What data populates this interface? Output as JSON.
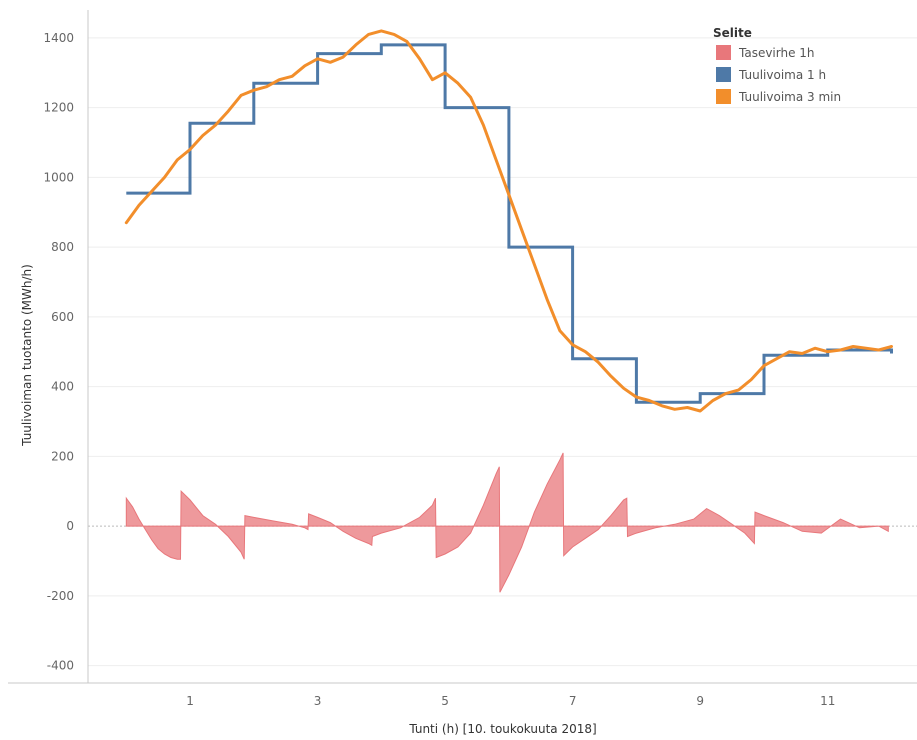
{
  "chart_data": {
    "type": "line",
    "xlabel": "Tunti (h) [10. toukokuuta 2018]",
    "ylabel": "Tuulivoiman tuotanto (MWh/h)",
    "xlim": [
      -0.6,
      12.4
    ],
    "ylim": [
      -450,
      1480
    ],
    "x_ticks": [
      1,
      3,
      5,
      7,
      9,
      11
    ],
    "y_ticks": [
      -400,
      -200,
      0,
      200,
      400,
      600,
      800,
      1000,
      1200,
      1400
    ],
    "grid": true,
    "legend_position": "top-right",
    "legend_title": "Selite",
    "series": [
      {
        "name": "Tasevirhe 1h",
        "type": "area",
        "color": "#e8777b",
        "x": [
          0.0,
          0.1,
          0.2,
          0.3,
          0.4,
          0.5,
          0.6,
          0.7,
          0.8,
          0.85,
          0.86,
          1.0,
          1.2,
          1.4,
          1.6,
          1.8,
          1.85,
          1.86,
          2.0,
          2.3,
          2.6,
          2.8,
          2.85,
          2.86,
          3.0,
          3.2,
          3.4,
          3.6,
          3.8,
          3.85,
          3.86,
          4.0,
          4.3,
          4.6,
          4.8,
          4.85,
          4.86,
          5.0,
          5.2,
          5.4,
          5.6,
          5.8,
          5.85,
          5.86,
          6.0,
          6.2,
          6.4,
          6.6,
          6.8,
          6.85,
          6.86,
          7.0,
          7.2,
          7.4,
          7.6,
          7.8,
          7.85,
          7.86,
          8.0,
          8.3,
          8.6,
          8.9,
          9.1,
          9.3,
          9.5,
          9.7,
          9.85,
          9.86,
          10.0,
          10.3,
          10.6,
          10.9,
          11.2,
          11.5,
          11.8,
          11.95
        ],
        "y": [
          80,
          55,
          20,
          -10,
          -40,
          -65,
          -80,
          -90,
          -95,
          -95,
          100,
          75,
          30,
          5,
          -30,
          -75,
          -95,
          30,
          25,
          15,
          5,
          -5,
          -10,
          35,
          25,
          10,
          -15,
          -35,
          -50,
          -55,
          -30,
          -20,
          -5,
          25,
          60,
          80,
          -90,
          -80,
          -60,
          -20,
          60,
          150,
          170,
          -190,
          -140,
          -60,
          40,
          120,
          190,
          210,
          -85,
          -60,
          -35,
          -10,
          30,
          75,
          80,
          -30,
          -20,
          -5,
          5,
          20,
          50,
          30,
          5,
          -20,
          -50,
          40,
          30,
          10,
          -15,
          -20,
          20,
          -5,
          0,
          -15
        ]
      },
      {
        "name": "Tuulivoima 1 h",
        "type": "step",
        "color": "#4e79a7",
        "x": [
          0,
          1,
          2,
          3,
          4,
          5,
          6,
          7,
          8,
          9,
          10,
          11,
          12
        ],
        "y": [
          955,
          1155,
          1270,
          1355,
          1380,
          1200,
          800,
          480,
          355,
          380,
          490,
          505,
          495
        ]
      },
      {
        "name": "Tuulivoima 3 min",
        "type": "line",
        "color": "#f28e2b",
        "x": [
          0.0,
          0.2,
          0.4,
          0.6,
          0.8,
          1.0,
          1.2,
          1.4,
          1.6,
          1.8,
          2.0,
          2.2,
          2.4,
          2.6,
          2.8,
          3.0,
          3.2,
          3.4,
          3.6,
          3.8,
          4.0,
          4.2,
          4.4,
          4.6,
          4.8,
          5.0,
          5.2,
          5.4,
          5.6,
          5.8,
          6.0,
          6.2,
          6.4,
          6.6,
          6.8,
          7.0,
          7.2,
          7.4,
          7.6,
          7.8,
          8.0,
          8.2,
          8.4,
          8.6,
          8.8,
          9.0,
          9.2,
          9.4,
          9.6,
          9.8,
          10.0,
          10.2,
          10.4,
          10.6,
          10.8,
          11.0,
          11.2,
          11.4,
          11.6,
          11.8,
          12.0
        ],
        "y": [
          870,
          920,
          960,
          1000,
          1050,
          1080,
          1120,
          1150,
          1190,
          1235,
          1250,
          1260,
          1280,
          1290,
          1320,
          1340,
          1330,
          1345,
          1380,
          1410,
          1420,
          1410,
          1390,
          1340,
          1280,
          1300,
          1270,
          1230,
          1150,
          1050,
          950,
          850,
          750,
          650,
          560,
          520,
          500,
          470,
          430,
          395,
          370,
          360,
          345,
          335,
          340,
          330,
          360,
          380,
          390,
          420,
          460,
          480,
          500,
          495,
          510,
          500,
          505,
          515,
          510,
          505,
          515
        ]
      }
    ]
  }
}
